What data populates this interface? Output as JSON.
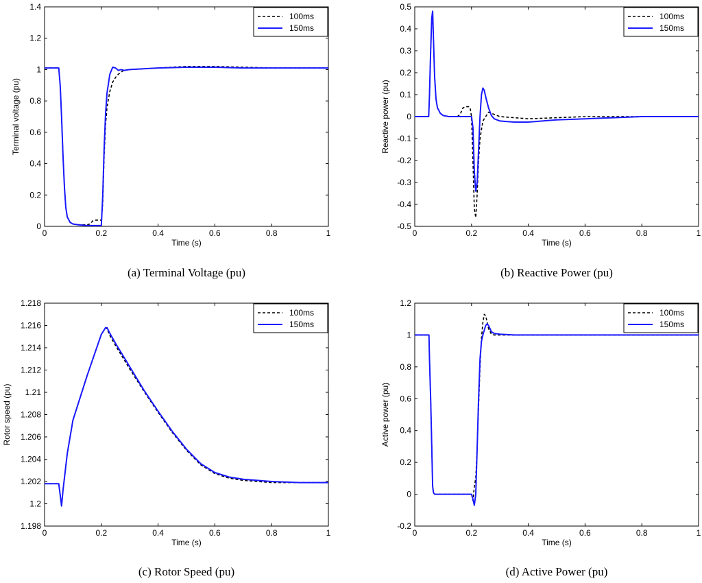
{
  "figure_panels": [
    {
      "caption": "(a)   Terminal Voltage (pu)"
    },
    {
      "caption": "(b)   Reactive Power (pu)"
    },
    {
      "caption": "(c)   Rotor Speed (pu)"
    },
    {
      "caption": "(d)   Active Power (pu)"
    }
  ],
  "chart_data": [
    {
      "type": "line",
      "title": "",
      "caption": "(a)   Terminal Voltage (pu)",
      "xlabel": "Time (s)",
      "ylabel": "Terminal voltage (pu)",
      "xlim": [
        0,
        1
      ],
      "ylim": [
        0,
        1.4
      ],
      "xticks": [
        0,
        0.2,
        0.4,
        0.6,
        0.8,
        1
      ],
      "xtick_labels": [
        "0",
        "0.2",
        "0.4",
        "0.6",
        "0.8",
        "1"
      ],
      "yticks": [
        0,
        0.2,
        0.4,
        0.6,
        0.8,
        1,
        1.2,
        1.4
      ],
      "ytick_labels": [
        "0",
        "0.2",
        "0.4",
        "0.6",
        "0.8",
        "1",
        "1.2",
        "1.4"
      ],
      "grid": false,
      "legend": "top-right",
      "series": [
        {
          "name": "100ms",
          "color": "#000000",
          "style": "dashed",
          "x": [
            0,
            0.05,
            0.055,
            0.06,
            0.065,
            0.07,
            0.075,
            0.08,
            0.09,
            0.1,
            0.12,
            0.15,
            0.16,
            0.17,
            0.18,
            0.19,
            0.2,
            0.205,
            0.21,
            0.215,
            0.22,
            0.23,
            0.24,
            0.25,
            0.26,
            0.27,
            0.28,
            0.3,
            0.35,
            0.4,
            0.5,
            0.6,
            0.7,
            0.8,
            0.9,
            1
          ],
          "y": [
            1.01,
            1.01,
            0.9,
            0.7,
            0.45,
            0.25,
            0.12,
            0.06,
            0.025,
            0.015,
            0.01,
            0.01,
            0.015,
            0.035,
            0.04,
            0.04,
            0.04,
            0.15,
            0.45,
            0.65,
            0.76,
            0.86,
            0.92,
            0.95,
            0.97,
            0.985,
            0.995,
            1.0,
            1.005,
            1.01,
            1.02,
            1.02,
            1.015,
            1.01,
            1.01,
            1.01
          ]
        },
        {
          "name": "150ms",
          "color": "#1a1aff",
          "style": "solid",
          "x": [
            0,
            0.05,
            0.055,
            0.06,
            0.065,
            0.07,
            0.075,
            0.08,
            0.09,
            0.1,
            0.12,
            0.15,
            0.17,
            0.19,
            0.2,
            0.205,
            0.21,
            0.215,
            0.22,
            0.23,
            0.24,
            0.25,
            0.26,
            0.27,
            0.28,
            0.3,
            0.35,
            0.4,
            0.5,
            0.6,
            0.7,
            0.8,
            0.9,
            1
          ],
          "y": [
            1.01,
            1.01,
            0.9,
            0.7,
            0.45,
            0.25,
            0.12,
            0.06,
            0.025,
            0.015,
            0.01,
            0.005,
            0.005,
            0.005,
            0.005,
            0.2,
            0.5,
            0.72,
            0.85,
            0.97,
            1.015,
            1.01,
            0.995,
            1.0,
            0.995,
            1.0,
            1.005,
            1.01,
            1.015,
            1.015,
            1.01,
            1.01,
            1.01,
            1.01
          ]
        }
      ]
    },
    {
      "type": "line",
      "title": "",
      "caption": "(b)   Reactive Power (pu)",
      "xlabel": "Time (s)",
      "ylabel": "Reactive power (pu)",
      "xlim": [
        0,
        1
      ],
      "ylim": [
        -0.5,
        0.5
      ],
      "xticks": [
        0,
        0.2,
        0.4,
        0.6,
        0.8,
        1
      ],
      "xtick_labels": [
        "0",
        "0.2",
        "0.4",
        "0.6",
        "0.8",
        "1"
      ],
      "yticks": [
        -0.5,
        -0.4,
        -0.3,
        -0.2,
        -0.1,
        0,
        0.1,
        0.2,
        0.3,
        0.4,
        0.5
      ],
      "ytick_labels": [
        "-0.5",
        "-0.4",
        "-0.3",
        "-0.2",
        "-0.1",
        "0",
        "0.1",
        "0.2",
        "0.3",
        "0.4",
        "0.5"
      ],
      "grid": false,
      "legend": "top-right",
      "series": [
        {
          "name": "100ms",
          "color": "#000000",
          "style": "dashed",
          "x": [
            0,
            0.049,
            0.052,
            0.056,
            0.06,
            0.063,
            0.066,
            0.07,
            0.075,
            0.08,
            0.09,
            0.1,
            0.12,
            0.15,
            0.16,
            0.17,
            0.18,
            0.19,
            0.195,
            0.2,
            0.205,
            0.21,
            0.215,
            0.22,
            0.225,
            0.23,
            0.24,
            0.25,
            0.26,
            0.27,
            0.28,
            0.3,
            0.35,
            0.4,
            0.5,
            0.6,
            0.7,
            0.8,
            0.9,
            1
          ],
          "y": [
            0,
            0,
            0.1,
            0.3,
            0.45,
            0.48,
            0.35,
            0.18,
            0.08,
            0.04,
            0.015,
            0.005,
            0.0,
            0.0,
            0.01,
            0.04,
            0.045,
            0.045,
            0.04,
            0.0,
            -0.2,
            -0.42,
            -0.46,
            -0.35,
            -0.2,
            -0.1,
            -0.02,
            0.0,
            0.02,
            0.015,
            0.01,
            0.0,
            -0.005,
            -0.01,
            -0.005,
            0.0,
            0.0,
            0.0,
            0.0,
            0.0
          ]
        },
        {
          "name": "150ms",
          "color": "#1a1aff",
          "style": "solid",
          "x": [
            0,
            0.049,
            0.052,
            0.056,
            0.06,
            0.063,
            0.066,
            0.07,
            0.075,
            0.08,
            0.09,
            0.1,
            0.12,
            0.15,
            0.18,
            0.2,
            0.205,
            0.21,
            0.215,
            0.22,
            0.225,
            0.23,
            0.235,
            0.24,
            0.245,
            0.25,
            0.26,
            0.27,
            0.28,
            0.3,
            0.35,
            0.4,
            0.5,
            0.6,
            0.7,
            0.8,
            0.9,
            1
          ],
          "y": [
            0,
            0,
            0.1,
            0.3,
            0.45,
            0.48,
            0.35,
            0.18,
            0.08,
            0.04,
            0.015,
            0.005,
            0.0,
            0.0,
            0.0,
            0.0,
            -0.05,
            -0.25,
            -0.34,
            -0.3,
            -0.15,
            0.0,
            0.1,
            0.13,
            0.12,
            0.09,
            0.04,
            0.005,
            -0.01,
            -0.02,
            -0.025,
            -0.025,
            -0.015,
            -0.01,
            -0.005,
            0.0,
            0.0,
            0.0
          ]
        }
      ]
    },
    {
      "type": "line",
      "title": "",
      "caption": "(c)   Rotor Speed (pu)",
      "xlabel": "Time (s)",
      "ylabel": "Rotor speed (pu)",
      "xlim": [
        0,
        1
      ],
      "ylim": [
        1.198,
        1.218
      ],
      "xticks": [
        0,
        0.2,
        0.4,
        0.6,
        0.8,
        1
      ],
      "xtick_labels": [
        "0",
        "0.2",
        "0.4",
        "0.6",
        "0.8",
        "1"
      ],
      "yticks": [
        1.198,
        1.2,
        1.202,
        1.204,
        1.206,
        1.208,
        1.21,
        1.212,
        1.214,
        1.216,
        1.218
      ],
      "ytick_labels": [
        "1.198",
        "1.2",
        "1.202",
        "1.204",
        "1.206",
        "1.208",
        "1.21",
        "1.212",
        "1.214",
        "1.216",
        "1.218"
      ],
      "grid": false,
      "legend": "top-right",
      "series": [
        {
          "name": "100ms",
          "color": "#000000",
          "style": "dashed",
          "x": [
            0,
            0.05,
            0.055,
            0.06,
            0.065,
            0.08,
            0.1,
            0.15,
            0.2,
            0.215,
            0.22,
            0.23,
            0.25,
            0.3,
            0.35,
            0.4,
            0.45,
            0.5,
            0.55,
            0.6,
            0.65,
            0.7,
            0.8,
            0.9,
            1
          ],
          "y": [
            1.2018,
            1.2018,
            1.2008,
            1.1998,
            1.2012,
            1.2045,
            1.2075,
            1.2115,
            1.2152,
            1.2158,
            1.2157,
            1.2151,
            1.2142,
            1.2121,
            1.2101,
            1.2082,
            1.2064,
            1.2048,
            1.2035,
            1.2027,
            1.2023,
            1.2021,
            1.2019,
            1.2019,
            1.2019
          ]
        },
        {
          "name": "150ms",
          "color": "#1a1aff",
          "style": "solid",
          "x": [
            0,
            0.05,
            0.055,
            0.06,
            0.065,
            0.08,
            0.1,
            0.15,
            0.2,
            0.215,
            0.22,
            0.23,
            0.25,
            0.3,
            0.35,
            0.4,
            0.45,
            0.5,
            0.55,
            0.6,
            0.65,
            0.7,
            0.8,
            0.9,
            1
          ],
          "y": [
            1.2018,
            1.2018,
            1.2008,
            1.1998,
            1.2012,
            1.2045,
            1.2075,
            1.2115,
            1.2152,
            1.2158,
            1.2158,
            1.2153,
            1.2144,
            1.2123,
            1.2102,
            1.2083,
            1.2065,
            1.2049,
            1.2036,
            1.2028,
            1.2024,
            1.2022,
            1.202,
            1.2019,
            1.2019
          ]
        }
      ]
    },
    {
      "type": "line",
      "title": "",
      "caption": "(d)   Active Power (pu)",
      "xlabel": "Time (s)",
      "ylabel": "Active power (pu)",
      "xlim": [
        0,
        1
      ],
      "ylim": [
        -0.2,
        1.2
      ],
      "xticks": [
        0,
        0.2,
        0.4,
        0.6,
        0.8,
        1
      ],
      "xtick_labels": [
        "0",
        "0.2",
        "0.4",
        "0.6",
        "0.8",
        "1"
      ],
      "yticks": [
        -0.2,
        0,
        0.2,
        0.4,
        0.6,
        0.8,
        1,
        1.2
      ],
      "ytick_labels": [
        "-0.2",
        "0",
        "0.2",
        "0.4",
        "0.6",
        "0.8",
        "1",
        "1.2"
      ],
      "grid": false,
      "legend": "top-right",
      "series": [
        {
          "name": "100ms",
          "color": "#000000",
          "style": "dashed",
          "x": [
            0,
            0.05,
            0.052,
            0.056,
            0.06,
            0.063,
            0.066,
            0.07,
            0.1,
            0.15,
            0.2,
            0.205,
            0.21,
            0.215,
            0.22,
            0.225,
            0.23,
            0.235,
            0.24,
            0.245,
            0.25,
            0.255,
            0.26,
            0.27,
            0.28,
            0.3,
            0.35,
            0.4,
            0.5,
            0.6,
            0.7,
            0.8,
            0.9,
            1
          ],
          "y": [
            1.0,
            1.0,
            0.85,
            0.6,
            0.3,
            0.05,
            0.01,
            0.0,
            0.0,
            0.0,
            0.0,
            -0.04,
            0.05,
            0.1,
            0.3,
            0.55,
            0.8,
            0.98,
            1.08,
            1.13,
            1.12,
            1.08,
            1.04,
            1.005,
            1.0,
            1.0,
            1.0,
            1.0,
            1.0,
            1.0,
            1.0,
            1.0,
            1.0,
            1.0
          ]
        },
        {
          "name": "150ms",
          "color": "#1a1aff",
          "style": "solid",
          "x": [
            0,
            0.05,
            0.052,
            0.056,
            0.06,
            0.063,
            0.066,
            0.07,
            0.1,
            0.15,
            0.2,
            0.205,
            0.21,
            0.215,
            0.22,
            0.225,
            0.23,
            0.235,
            0.24,
            0.245,
            0.25,
            0.255,
            0.26,
            0.265,
            0.27,
            0.28,
            0.3,
            0.35,
            0.4,
            0.5,
            0.6,
            0.7,
            0.8,
            0.9,
            1
          ],
          "y": [
            1.0,
            1.0,
            0.85,
            0.6,
            0.3,
            0.05,
            0.01,
            0.0,
            0.0,
            0.0,
            0.0,
            -0.03,
            -0.07,
            0.0,
            0.3,
            0.6,
            0.85,
            0.96,
            1.0,
            1.03,
            1.06,
            1.07,
            1.06,
            1.04,
            1.02,
            1.01,
            1.005,
            1.0,
            1.0,
            1.0,
            1.0,
            1.0,
            1.0,
            1.0,
            1.0
          ]
        }
      ]
    }
  ]
}
